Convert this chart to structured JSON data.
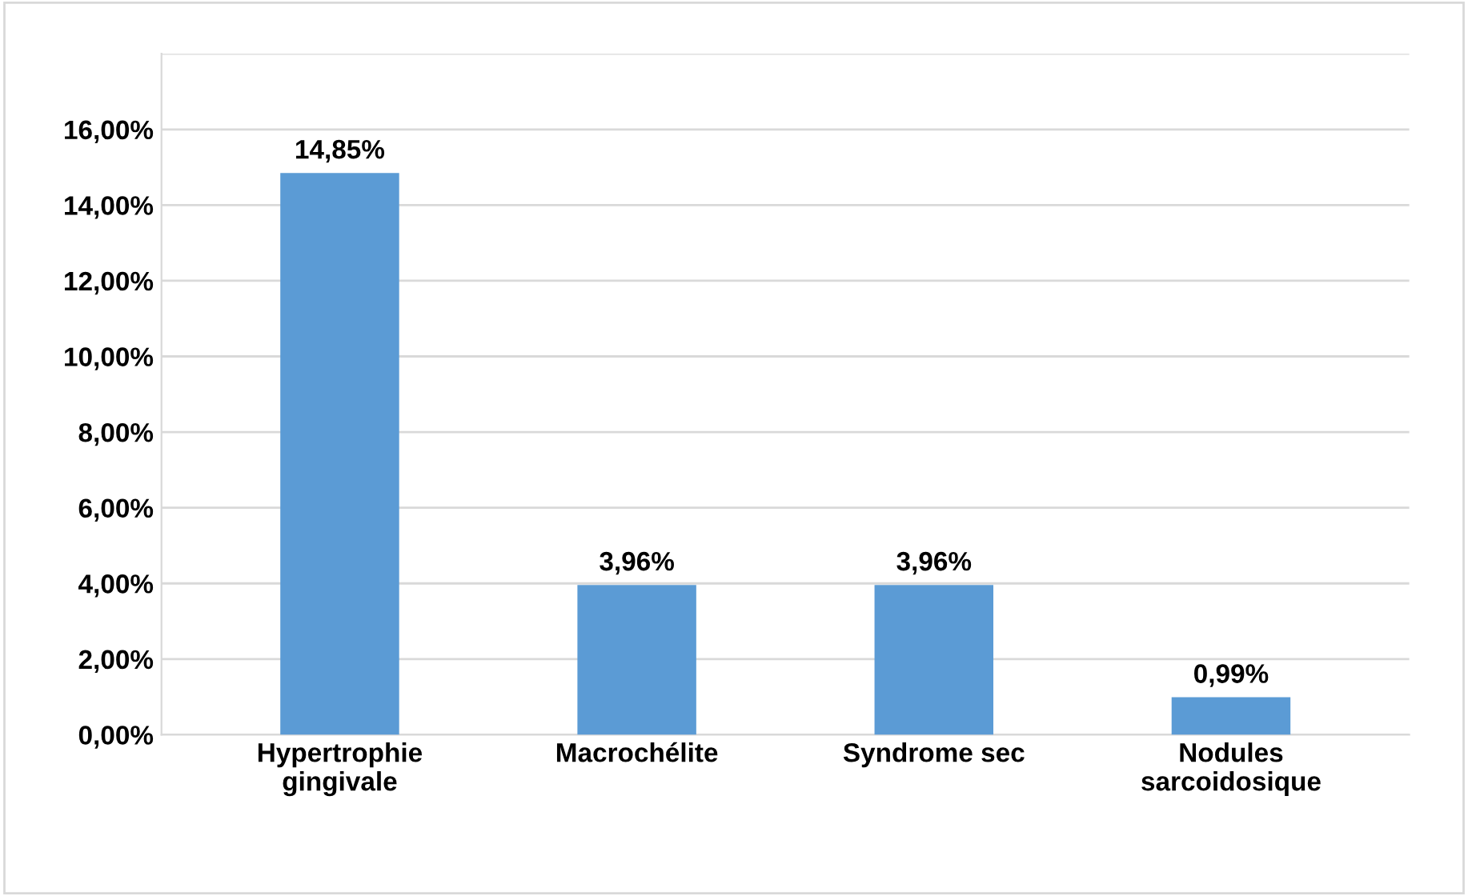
{
  "chart_data": {
    "type": "bar",
    "categories": [
      "Hypertrophie\ngingivale",
      "Macrochélite",
      "Syndrome sec",
      "Nodules\nsarcoidosique"
    ],
    "values": [
      14.85,
      3.96,
      3.96,
      0.99
    ],
    "value_labels": [
      "14,85%",
      "3,96%",
      "3,96%",
      "0,99%"
    ],
    "color": "#5b9bd5",
    "ylim": [
      0,
      18
    ],
    "yticks": [
      {
        "value": 0,
        "label": "0,00%"
      },
      {
        "value": 2,
        "label": "2,00%"
      },
      {
        "value": 4,
        "label": "4,00%"
      },
      {
        "value": 6,
        "label": "6,00%"
      },
      {
        "value": 8,
        "label": "8,00%"
      },
      {
        "value": 10,
        "label": "10,00%"
      },
      {
        "value": 12,
        "label": "12,00%"
      },
      {
        "value": 14,
        "label": "14,00%"
      },
      {
        "value": 16,
        "label": "16,00%"
      },
      {
        "value": 18,
        "label": null
      }
    ],
    "grid": "y"
  }
}
